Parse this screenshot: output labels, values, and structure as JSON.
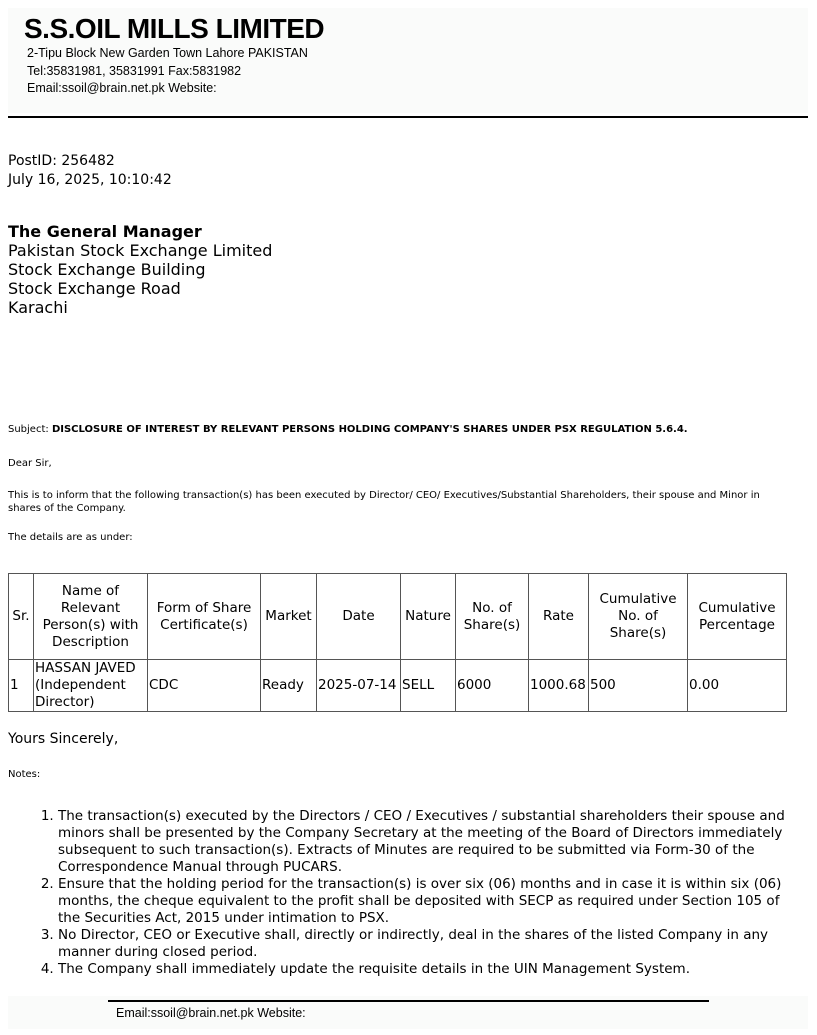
{
  "letterhead": {
    "company": "S.S.OIL MILLS LIMITED",
    "address": "2-Tipu Block New Garden Town Lahore PAKISTAN",
    "phone": "Tel:35831981, 35831991 Fax:5831982",
    "contact": "Email:ssoil@brain.net.pk Website:"
  },
  "meta": {
    "post_id": "PostID: 256482",
    "datetime": "July 16, 2025, 10:10:42"
  },
  "recipient": {
    "title": "The General Manager",
    "lines": [
      "Pakistan Stock Exchange Limited",
      "Stock Exchange Building",
      "Stock Exchange Road",
      "Karachi"
    ]
  },
  "subject": {
    "label": "Subject: ",
    "text": "DISCLOSURE OF INTEREST BY RELEVANT PERSONS HOLDING COMPANY'S SHARES UNDER PSX REGULATION 5.6.4."
  },
  "salutation": "Dear Sir,",
  "intro": "This is to inform that the following transaction(s) has been executed by Director/ CEO/ Executives/Substantial Shareholders, their spouse and Minor in shares of the Company.",
  "details_label": "The details are as under:",
  "table": {
    "headers": [
      "Sr.",
      "Name of Relevant Person(s) with Description",
      "Form of Share Certificate(s)",
      "Market",
      "Date",
      "Nature",
      "No. of Share(s)",
      "Rate",
      "Cumulative No. of Share(s)",
      "Cumulative Percentage"
    ],
    "rows": [
      [
        "1",
        "HASSAN JAVED (Independent Director)",
        "CDC",
        "Ready",
        "2025-07-14",
        "SELL",
        "6000",
        "1000.68",
        "500",
        "0.00"
      ]
    ]
  },
  "closing": "Yours Sincerely,",
  "notes_label": "Notes:",
  "notes": [
    "The transaction(s) executed by the Directors / CEO / Executives / substantial shareholders their spouse and minors shall be presented by the Company Secretary at the meeting of the Board of Directors immediately subsequent to such transaction(s). Extracts of Minutes are required to be submitted via Form-30 of the Correspondence Manual through PUCARS.",
    "Ensure that the holding period for the transaction(s) is over six (06) months and in case it is within six (06) months, the cheque equivalent to the profit shall be deposited with SECP as required under Section 105 of the Securities Act, 2015 under intimation to PSX.",
    "No Director, CEO or Executive shall, directly or indirectly, deal in the shares of the listed Company in any manner during closed period.",
    "The Company shall immediately update the requisite details in the UIN Management System."
  ],
  "footer": {
    "contact": "Email:ssoil@brain.net.pk Website:"
  }
}
